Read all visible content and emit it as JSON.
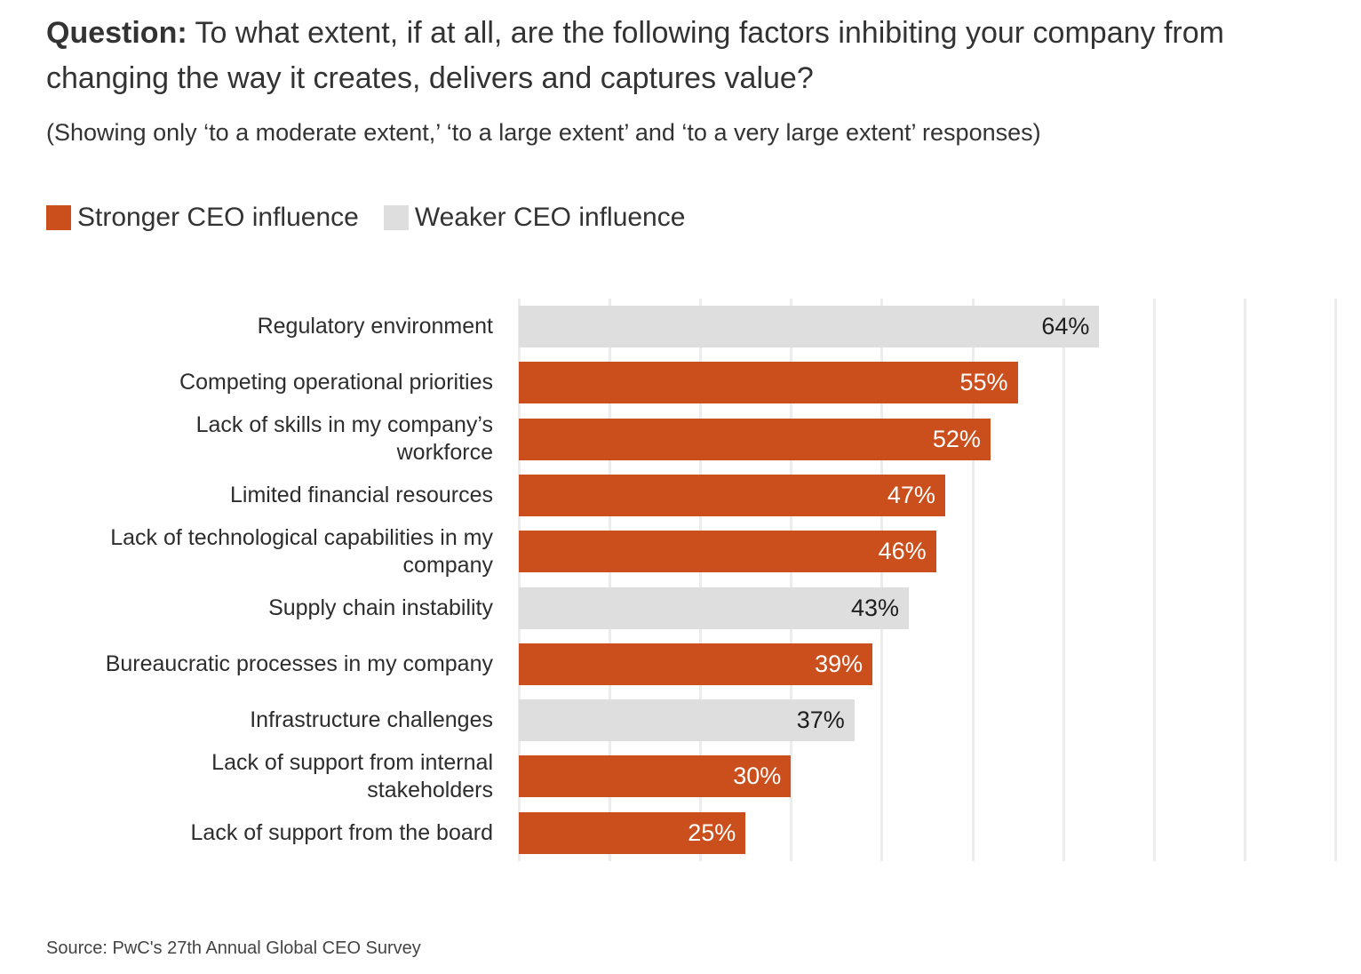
{
  "title": {
    "prefix": "Question:",
    "text": " To what extent, if at all, are the following factors inhibiting your company from changing the way it creates, delivers and captures value?"
  },
  "subtitle": "(Showing only ‘to a moderate extent,’ ‘to a large extent’ and ‘to a very large extent’ responses)",
  "source": "Source: PwC's 27th Annual Global CEO Survey",
  "colors": {
    "stronger": "#cb4f1c",
    "weaker": "#dedede"
  },
  "chart_data": {
    "type": "bar",
    "orientation": "horizontal",
    "xlim": [
      0,
      90
    ],
    "gridlines_every": 10,
    "legend": [
      {
        "key": "stronger",
        "label": "Stronger CEO influence"
      },
      {
        "key": "weaker",
        "label": "Weaker CEO influence"
      }
    ],
    "categories": [
      "Regulatory environment",
      "Competing operational priorities",
      "Lack of skills in my company’s\nworkforce",
      "Limited financial resources",
      "Lack of technological capabilities in my\ncompany",
      "Supply chain instability",
      "Bureaucratic processes in my company",
      "Infrastructure challenges",
      "Lack of support from internal\nstakeholders",
      "Lack of support from the board"
    ],
    "values": [
      64,
      55,
      52,
      47,
      46,
      43,
      39,
      37,
      30,
      25
    ],
    "value_labels": [
      "64%",
      "55%",
      "52%",
      "47%",
      "46%",
      "43%",
      "39%",
      "37%",
      "30%",
      "25%"
    ],
    "group": [
      "weaker",
      "stronger",
      "stronger",
      "stronger",
      "stronger",
      "weaker",
      "stronger",
      "weaker",
      "stronger",
      "stronger"
    ]
  }
}
